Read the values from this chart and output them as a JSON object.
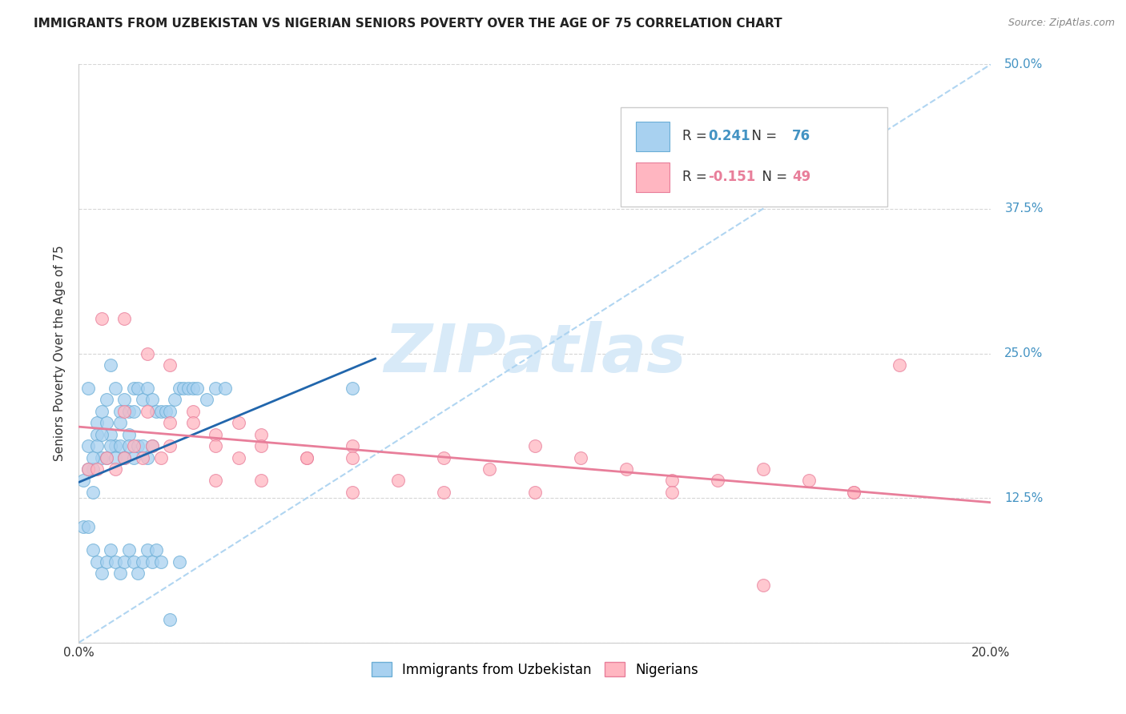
{
  "title": "IMMIGRANTS FROM UZBEKISTAN VS NIGERIAN SENIORS POVERTY OVER THE AGE OF 75 CORRELATION CHART",
  "source": "Source: ZipAtlas.com",
  "ylabel": "Seniors Poverty Over the Age of 75",
  "xlim": [
    0.0,
    0.2
  ],
  "ylim": [
    0.0,
    0.5
  ],
  "yticks": [
    0.0,
    0.125,
    0.25,
    0.375,
    0.5
  ],
  "ytick_labels": [
    "",
    "12.5%",
    "25.0%",
    "37.5%",
    "50.0%"
  ],
  "xticks": [
    0.0,
    0.05,
    0.1,
    0.15,
    0.2
  ],
  "xtick_labels": [
    "0.0%",
    "",
    "",
    "",
    "20.0%"
  ],
  "scatter_color1": "#a8d1f0",
  "scatter_edge1": "#6baed6",
  "scatter_color2": "#ffb6c1",
  "scatter_edge2": "#e87e9a",
  "line_color1": "#2166ac",
  "line_color2": "#e87e9a",
  "dashed_line_color": "#a8d1f0",
  "background_color": "#ffffff",
  "grid_color": "#cccccc",
  "ytick_color": "#4393c3",
  "watermark_color": "#ddeeff",
  "uzb_x": [
    0.002,
    0.004,
    0.001,
    0.003,
    0.002,
    0.005,
    0.003,
    0.004,
    0.006,
    0.005,
    0.007,
    0.006,
    0.008,
    0.007,
    0.009,
    0.008,
    0.01,
    0.009,
    0.011,
    0.01,
    0.012,
    0.011,
    0.013,
    0.012,
    0.014,
    0.015,
    0.016,
    0.017,
    0.018,
    0.019,
    0.02,
    0.021,
    0.022,
    0.023,
    0.024,
    0.025,
    0.026,
    0.028,
    0.03,
    0.032,
    0.001,
    0.002,
    0.003,
    0.004,
    0.005,
    0.006,
    0.007,
    0.008,
    0.009,
    0.01,
    0.011,
    0.012,
    0.013,
    0.014,
    0.015,
    0.016,
    0.002,
    0.003,
    0.004,
    0.005,
    0.006,
    0.007,
    0.008,
    0.009,
    0.01,
    0.011,
    0.012,
    0.013,
    0.014,
    0.015,
    0.016,
    0.017,
    0.018,
    0.02,
    0.022,
    0.06
  ],
  "uzb_y": [
    0.22,
    0.19,
    0.1,
    0.13,
    0.17,
    0.2,
    0.15,
    0.18,
    0.21,
    0.16,
    0.24,
    0.19,
    0.22,
    0.18,
    0.2,
    0.17,
    0.21,
    0.19,
    0.2,
    0.16,
    0.22,
    0.18,
    0.22,
    0.2,
    0.21,
    0.22,
    0.21,
    0.2,
    0.2,
    0.2,
    0.2,
    0.21,
    0.22,
    0.22,
    0.22,
    0.22,
    0.22,
    0.21,
    0.22,
    0.22,
    0.14,
    0.15,
    0.16,
    0.17,
    0.18,
    0.16,
    0.17,
    0.16,
    0.17,
    0.16,
    0.17,
    0.16,
    0.17,
    0.17,
    0.16,
    0.17,
    0.1,
    0.08,
    0.07,
    0.06,
    0.07,
    0.08,
    0.07,
    0.06,
    0.07,
    0.08,
    0.07,
    0.06,
    0.07,
    0.08,
    0.07,
    0.08,
    0.07,
    0.02,
    0.07,
    0.22
  ],
  "nig_x": [
    0.01,
    0.015,
    0.02,
    0.025,
    0.03,
    0.035,
    0.04,
    0.05,
    0.06,
    0.07,
    0.08,
    0.09,
    0.1,
    0.11,
    0.12,
    0.13,
    0.14,
    0.15,
    0.16,
    0.17,
    0.005,
    0.01,
    0.015,
    0.02,
    0.025,
    0.03,
    0.035,
    0.04,
    0.05,
    0.06,
    0.002,
    0.004,
    0.006,
    0.008,
    0.01,
    0.012,
    0.014,
    0.016,
    0.018,
    0.02,
    0.03,
    0.04,
    0.06,
    0.08,
    0.1,
    0.13,
    0.15,
    0.17,
    0.18
  ],
  "nig_y": [
    0.2,
    0.2,
    0.19,
    0.2,
    0.18,
    0.19,
    0.18,
    0.16,
    0.17,
    0.14,
    0.16,
    0.15,
    0.17,
    0.16,
    0.15,
    0.14,
    0.14,
    0.15,
    0.14,
    0.13,
    0.28,
    0.28,
    0.25,
    0.24,
    0.19,
    0.17,
    0.16,
    0.17,
    0.16,
    0.16,
    0.15,
    0.15,
    0.16,
    0.15,
    0.16,
    0.17,
    0.16,
    0.17,
    0.16,
    0.17,
    0.14,
    0.14,
    0.13,
    0.13,
    0.13,
    0.13,
    0.05,
    0.13,
    0.24
  ]
}
